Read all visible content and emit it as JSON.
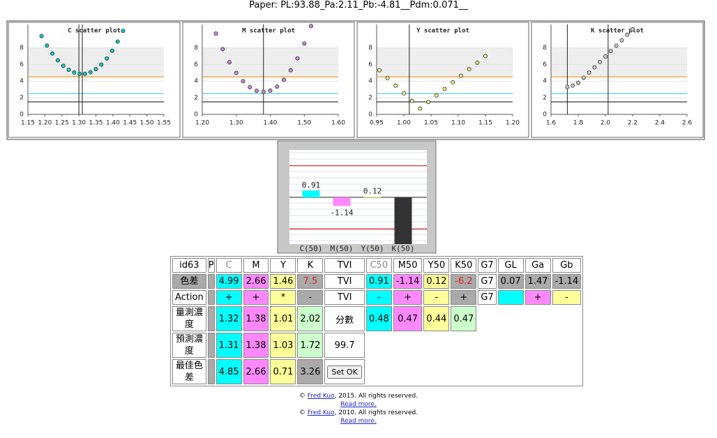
{
  "header": {
    "title": "Paper: PL:93.88_Pa:2.11_Pb:-4.81__Pdm:0.071__"
  },
  "chart_data": [
    {
      "type": "scatter",
      "title": "C scatter plot",
      "color": "#00cccc",
      "x": [
        1.19,
        1.206,
        1.222,
        1.238,
        1.254,
        1.27,
        1.286,
        1.302,
        1.318,
        1.334,
        1.35,
        1.366,
        1.382,
        1.398,
        1.414,
        1.43
      ],
      "values": [
        9.4,
        8.27,
        7.3,
        6.49,
        5.84,
        5.36,
        5.03,
        4.87,
        4.87,
        5.06,
        5.43,
        5.98,
        6.72,
        7.64,
        8.74,
        10.03
      ],
      "xlim": [
        1.15,
        1.55
      ],
      "xticks": [
        1.15,
        {
          "value": 1.2,
          "label": "1.20"
        },
        1.25,
        {
          "value": 1.3,
          "label": "1.30"
        },
        1.35,
        {
          "value": 1.4,
          "label": "1.40"
        },
        1.45,
        {
          "value": 1.5,
          "label": "1.50"
        },
        1.55
      ],
      "ylim": [
        0,
        10.8
      ],
      "yticks": [
        0,
        2,
        4,
        6,
        8
      ],
      "hlines": [
        {
          "value": 4.5,
          "color": "#f0a030"
        },
        {
          "value": 2.5,
          "color": "#55c8e0"
        },
        {
          "value": 1.5,
          "color": "#222222"
        }
      ],
      "vlines": [
        1.3,
        1.31
      ]
    },
    {
      "type": "scatter",
      "title": "M scatter plot",
      "color": "#cc88dd",
      "x": [
        1.24,
        1.26,
        1.28,
        1.3,
        1.32,
        1.34,
        1.36,
        1.38,
        1.4,
        1.42,
        1.44,
        1.46,
        1.48,
        1.5,
        1.52
      ],
      "values": [
        9.7,
        7.84,
        6.27,
        4.98,
        3.99,
        3.27,
        2.84,
        2.7,
        2.86,
        3.34,
        4.15,
        5.28,
        6.73,
        8.5,
        10.6
      ],
      "xlim": [
        1.2,
        1.6
      ],
      "xticks": [
        {
          "value": 1.2,
          "label": "1.20"
        },
        {
          "value": 1.3,
          "label": "1.30"
        },
        {
          "value": 1.4,
          "label": "1.40"
        },
        {
          "value": 1.5,
          "label": "1.50"
        },
        {
          "value": 1.6,
          "label": "1.60"
        }
      ],
      "ylim": [
        0,
        10.8
      ],
      "yticks": [
        0,
        2,
        4,
        6,
        8
      ],
      "hlines": [
        {
          "value": 4.5,
          "color": "#f0a030"
        },
        {
          "value": 2.5,
          "color": "#55c8e0"
        },
        {
          "value": 1.5,
          "color": "#222222"
        }
      ],
      "vlines": [
        1.38
      ]
    },
    {
      "type": "scatter",
      "title": "Y scatter plot",
      "color": "#eeee88",
      "x": [
        0.955,
        0.97,
        0.985,
        1.0,
        1.015,
        1.03,
        1.045,
        1.06,
        1.075,
        1.09,
        1.105,
        1.12,
        1.135,
        1.15
      ],
      "values": [
        5.3,
        4.36,
        3.45,
        2.53,
        1.62,
        0.7,
        1.49,
        2.28,
        3.06,
        3.85,
        4.64,
        5.43,
        6.21,
        7.0
      ],
      "xlim": [
        0.95,
        1.2
      ],
      "xticks": [
        0.95,
        {
          "value": 1.0,
          "label": "1.00"
        },
        1.05,
        {
          "value": 1.1,
          "label": "1.10"
        },
        1.15,
        {
          "value": 1.2,
          "label": "1.20"
        }
      ],
      "ylim": [
        0,
        10.8
      ],
      "yticks": [
        0,
        2,
        4,
        6,
        8
      ],
      "hlines": [
        {
          "value": 4.5,
          "color": "#f0a030"
        },
        {
          "value": 2.5,
          "color": "#55c8e0"
        },
        {
          "value": 1.5,
          "color": "#222222"
        }
      ],
      "vlines": [
        1.01
      ]
    },
    {
      "type": "scatter",
      "title": "K scatter plot",
      "color": "#cccccc",
      "x": [
        1.72,
        1.76,
        1.8,
        1.84,
        1.88,
        1.92,
        1.96,
        2.0,
        2.04,
        2.08,
        2.12,
        2.16,
        2.2
      ],
      "values": [
        3.3,
        3.45,
        3.8,
        4.4,
        5.0,
        5.65,
        6.3,
        6.95,
        7.6,
        8.25,
        8.9,
        9.55,
        10.2
      ],
      "xlim": [
        1.6,
        2.6
      ],
      "xticks": [
        1.6,
        1.8,
        {
          "value": 2,
          "label": "2.0"
        },
        2.2,
        2.4,
        2.6
      ],
      "ylim": [
        0,
        10.8
      ],
      "yticks": [
        0,
        2,
        4,
        6,
        8
      ],
      "hlines": [
        {
          "value": 4.5,
          "color": "#f0a030"
        },
        {
          "value": 2.5,
          "color": "#55c8e0"
        },
        {
          "value": 1.5,
          "color": "#222222"
        }
      ],
      "vlines": [
        2.02,
        1.72
      ]
    },
    {
      "type": "bar",
      "categories": [
        "C(50)",
        "M(50)",
        "Y(50)",
        "K(50)"
      ],
      "values": [
        0.91,
        -1.14,
        0.12,
        -6.2
      ],
      "value_labels": [
        "0.91",
        "-1.14",
        "0.12",
        null
      ],
      "colors": [
        "#00ffff",
        "#ff88ff",
        "#ffff99",
        "#333333"
      ],
      "ylim": [
        -6.2,
        6.3
      ],
      "hlines": [
        {
          "value": 4.2,
          "color": "#dd2222"
        },
        {
          "value": -4.2,
          "color": "#dd2222"
        }
      ]
    }
  ],
  "table": {
    "rows": [
      [
        "id63",
        "P",
        "C",
        "M",
        "Y",
        "K",
        "TVI",
        "C50",
        "M50",
        "Y50",
        "K50",
        "G7",
        "GL",
        "Ga",
        "Gb"
      ],
      [
        "色差",
        null,
        "4.99",
        "2.66",
        "1.46",
        "7.5",
        "TVI",
        "0.91",
        "-1.14",
        "0.12",
        "-6.2",
        "G7",
        "0.07",
        "1.47",
        "-1.14"
      ],
      [
        "Action",
        null,
        "+",
        "+",
        "*",
        "-",
        "TVI",
        "-",
        "+",
        "-",
        "+",
        "G7",
        null,
        "+",
        "-"
      ],
      [
        "量測濃度",
        null,
        "1.32",
        "1.38",
        "1.01",
        "2.02",
        "分數",
        "0.48",
        "0.47",
        "0.44",
        "0.47"
      ],
      [
        "預測濃度",
        null,
        "1.31",
        "1.38",
        "1.03",
        "1.72",
        "99.7"
      ],
      [
        "最佳色差",
        null,
        "4.85",
        "2.66",
        "0.71",
        "3.26",
        "Set OK"
      ]
    ]
  },
  "footer": [
    {
      "pre": "©",
      "name": "Fred Kuo",
      "post": ", 2015. All rights reserved.",
      "more": "Read more."
    },
    {
      "pre": "©",
      "name": "Fred Kuo",
      "post": ", 2010. All rights reserved.",
      "more": "Read more."
    }
  ]
}
